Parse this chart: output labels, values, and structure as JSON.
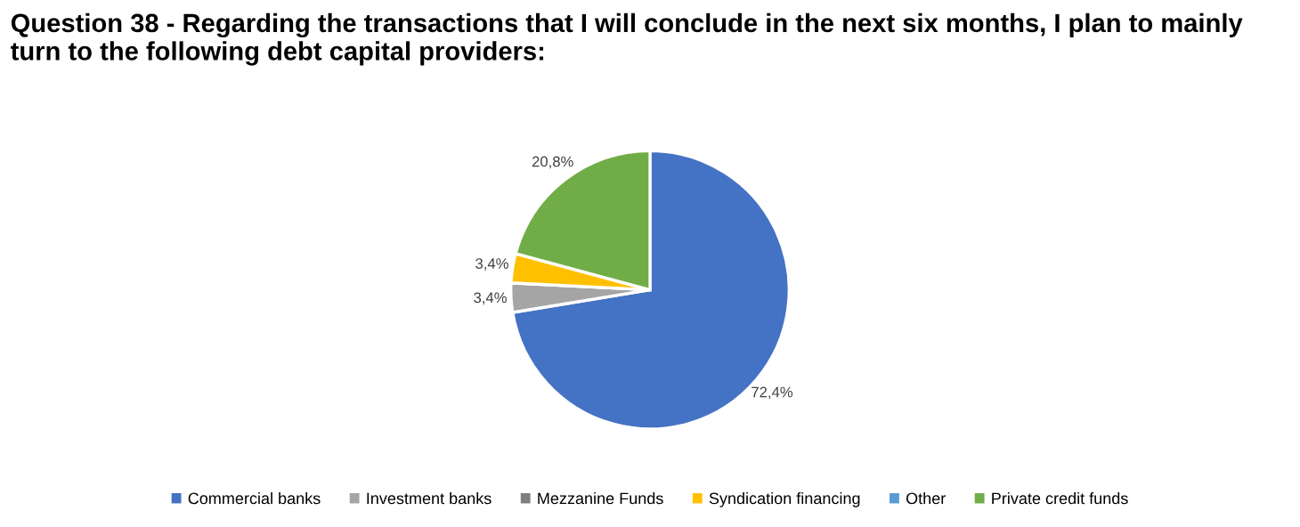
{
  "chart_data": {
    "type": "pie",
    "title": "Question 38 - Regarding the transactions that I will conclude in the next six months, I plan to mainly turn to the following debt capital providers:",
    "categories": [
      "Commercial banks",
      "Investment banks",
      "Mezzanine Funds",
      "Syndication financing",
      "Other",
      "Private credit funds"
    ],
    "values": [
      72.4,
      3.4,
      0,
      3.4,
      0,
      20.8
    ],
    "value_labels": [
      "72,4%",
      "3,4%",
      null,
      "3,4%",
      null,
      "20,8%"
    ],
    "colors": [
      "#4472c4",
      "#a5a5a5",
      "#7f7f7f",
      "#ffc000",
      "#5b9bd5",
      "#70ad47"
    ],
    "legend": "bottom"
  }
}
